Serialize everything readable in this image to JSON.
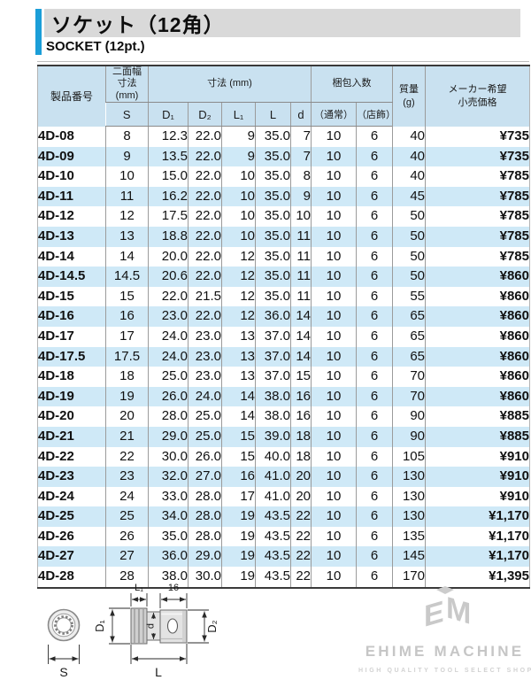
{
  "page": {
    "title_jp": "ソケット（12角）",
    "title_en": "SOCKET (12pt.)",
    "accent_color": "#1b9ed8",
    "header_bg": "#c9e1f0",
    "stripe_bg": "#cfe9f7"
  },
  "table": {
    "header": {
      "product_no": "製品番号",
      "waf_line1": "二面幅",
      "waf_line2": "寸法",
      "waf_line3": "(mm)",
      "waf_sub": "S",
      "dims_group": "寸法 (mm)",
      "dim_d1": "D₁",
      "dim_d2": "D₂",
      "dim_l1": "L₁",
      "dim_l": "L",
      "dim_d": "d",
      "packing_group": "梱包入数",
      "pack_normal": "（通常）",
      "pack_display": "（店飾）",
      "weight_line1": "質量",
      "weight_line2": "(g)",
      "price_line1": "メーカー希望",
      "price_line2": "小売価格"
    },
    "rows": [
      [
        "4D-08",
        "8",
        "12.3",
        "22.0",
        "9",
        "35.0",
        "7",
        "10",
        "6",
        "40",
        "¥735"
      ],
      [
        "4D-09",
        "9",
        "13.5",
        "22.0",
        "9",
        "35.0",
        "7",
        "10",
        "6",
        "40",
        "¥735"
      ],
      [
        "4D-10",
        "10",
        "15.0",
        "22.0",
        "10",
        "35.0",
        "8",
        "10",
        "6",
        "40",
        "¥785"
      ],
      [
        "4D-11",
        "11",
        "16.2",
        "22.0",
        "10",
        "35.0",
        "9",
        "10",
        "6",
        "45",
        "¥785"
      ],
      [
        "4D-12",
        "12",
        "17.5",
        "22.0",
        "10",
        "35.0",
        "10",
        "10",
        "6",
        "50",
        "¥785"
      ],
      [
        "4D-13",
        "13",
        "18.8",
        "22.0",
        "10",
        "35.0",
        "11",
        "10",
        "6",
        "50",
        "¥785"
      ],
      [
        "4D-14",
        "14",
        "20.0",
        "22.0",
        "12",
        "35.0",
        "11",
        "10",
        "6",
        "50",
        "¥785"
      ],
      [
        "4D-14.5",
        "14.5",
        "20.6",
        "22.0",
        "12",
        "35.0",
        "11",
        "10",
        "6",
        "50",
        "¥860"
      ],
      [
        "4D-15",
        "15",
        "22.0",
        "21.5",
        "12",
        "35.0",
        "11",
        "10",
        "6",
        "55",
        "¥860"
      ],
      [
        "4D-16",
        "16",
        "23.0",
        "22.0",
        "12",
        "36.0",
        "14",
        "10",
        "6",
        "65",
        "¥860"
      ],
      [
        "4D-17",
        "17",
        "24.0",
        "23.0",
        "13",
        "37.0",
        "14",
        "10",
        "6",
        "65",
        "¥860"
      ],
      [
        "4D-17.5",
        "17.5",
        "24.0",
        "23.0",
        "13",
        "37.0",
        "14",
        "10",
        "6",
        "65",
        "¥860"
      ],
      [
        "4D-18",
        "18",
        "25.0",
        "23.0",
        "13",
        "37.0",
        "15",
        "10",
        "6",
        "70",
        "¥860"
      ],
      [
        "4D-19",
        "19",
        "26.0",
        "24.0",
        "14",
        "38.0",
        "16",
        "10",
        "6",
        "70",
        "¥860"
      ],
      [
        "4D-20",
        "20",
        "28.0",
        "25.0",
        "14",
        "38.0",
        "16",
        "10",
        "6",
        "90",
        "¥885"
      ],
      [
        "4D-21",
        "21",
        "29.0",
        "25.0",
        "15",
        "39.0",
        "18",
        "10",
        "6",
        "90",
        "¥885"
      ],
      [
        "4D-22",
        "22",
        "30.0",
        "26.0",
        "15",
        "40.0",
        "18",
        "10",
        "6",
        "105",
        "¥910"
      ],
      [
        "4D-23",
        "23",
        "32.0",
        "27.0",
        "16",
        "41.0",
        "20",
        "10",
        "6",
        "130",
        "¥910"
      ],
      [
        "4D-24",
        "24",
        "33.0",
        "28.0",
        "17",
        "41.0",
        "20",
        "10",
        "6",
        "130",
        "¥910"
      ],
      [
        "4D-25",
        "25",
        "34.0",
        "28.0",
        "19",
        "43.5",
        "22",
        "10",
        "6",
        "130",
        "¥1,170"
      ],
      [
        "4D-26",
        "26",
        "35.0",
        "28.0",
        "19",
        "43.5",
        "22",
        "10",
        "6",
        "135",
        "¥1,170"
      ],
      [
        "4D-27",
        "27",
        "36.0",
        "29.0",
        "19",
        "43.5",
        "22",
        "10",
        "6",
        "145",
        "¥1,170"
      ],
      [
        "4D-28",
        "28",
        "38.0",
        "30.0",
        "19",
        "43.5",
        "22",
        "10",
        "6",
        "170",
        "¥1,395"
      ]
    ]
  },
  "diagram": {
    "label_s": "S",
    "label_d1": "D₁",
    "label_d2": "D₂",
    "label_d": "d",
    "label_l": "L",
    "label_l1": "L₁",
    "label_16": "16"
  },
  "logo": {
    "monogram_left": "E",
    "monogram_right": "M",
    "name": "EHIME MACHINE",
    "tagline": "HIGH QUALITY TOOL SELECT SHOP"
  }
}
